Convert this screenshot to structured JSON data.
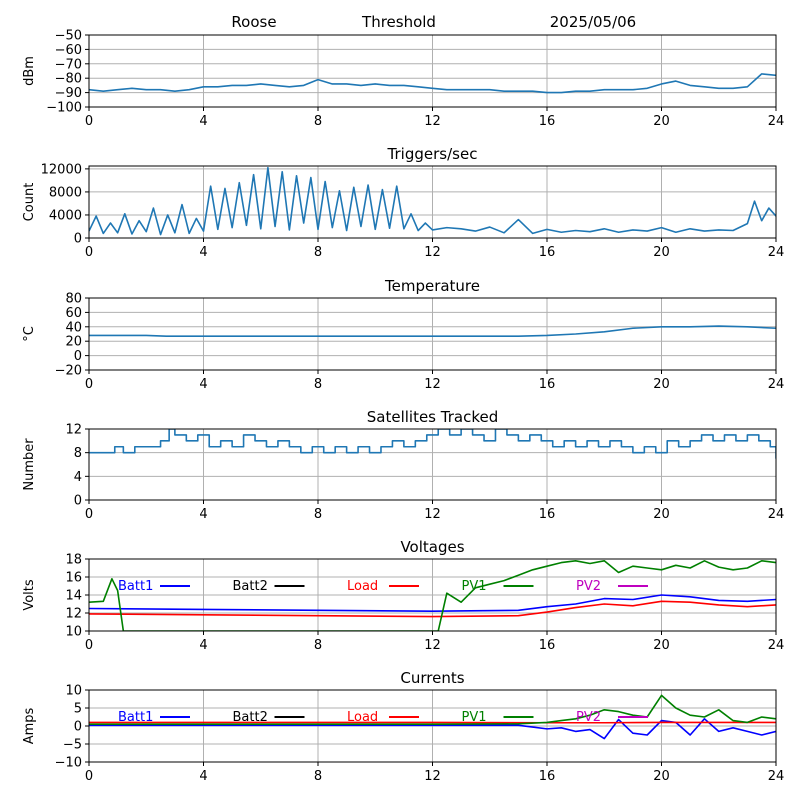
{
  "header": {
    "station": "Roose",
    "mode": "Threshold",
    "date": "2025/05/06"
  },
  "colors": {
    "trace": "#1f77b4",
    "grid": "#b0b0b0",
    "batt1": "#0000ff",
    "batt2": "#000000",
    "load": "#ff0000",
    "pv1": "#008000",
    "pv2": "#bf00bf"
  },
  "chart_data": [
    {
      "id": "signal",
      "type": "line",
      "title": "",
      "ylabel": "dBm",
      "xlim": [
        0,
        24
      ],
      "ylim": [
        -100,
        -50
      ],
      "xticks": [
        "0",
        "4",
        "8",
        "12",
        "16",
        "20",
        "24"
      ],
      "yticks": [
        "−50",
        "−60",
        "−70",
        "−80",
        "−90",
        "−100"
      ],
      "grid": true,
      "series": [
        {
          "color": "#1f77b4",
          "x": [
            0,
            0.5,
            1,
            1.5,
            2,
            2.5,
            3,
            3.5,
            4,
            4.5,
            5,
            5.5,
            6,
            6.5,
            7,
            7.5,
            8,
            8.5,
            9,
            9.5,
            10,
            10.5,
            11,
            11.5,
            12,
            12.5,
            13,
            13.5,
            14,
            14.5,
            15,
            15.5,
            16,
            16.5,
            17,
            17.5,
            18,
            18.5,
            19,
            19.5,
            20,
            20.5,
            21,
            21.5,
            22,
            22.5,
            23,
            23.5,
            24
          ],
          "y": [
            -88,
            -89,
            -88,
            -87,
            -88,
            -88,
            -89,
            -88,
            -86,
            -86,
            -85,
            -85,
            -84,
            -85,
            -86,
            -85,
            -81,
            -84,
            -84,
            -85,
            -84,
            -85,
            -85,
            -86,
            -87,
            -88,
            -88,
            -88,
            -88,
            -89,
            -89,
            -89,
            -90,
            -90,
            -89,
            -89,
            -88,
            -88,
            -88,
            -87,
            -84,
            -82,
            -85,
            -86,
            -87,
            -87,
            -86,
            -77,
            -78
          ]
        }
      ]
    },
    {
      "id": "triggers",
      "type": "line",
      "title": "Triggers/sec",
      "ylabel": "Count",
      "xlim": [
        0,
        24
      ],
      "ylim": [
        0,
        12500
      ],
      "xticks": [
        "0",
        "4",
        "8",
        "12",
        "16",
        "20",
        "24"
      ],
      "yticks": [
        "0",
        "4000",
        "8000",
        "12000"
      ],
      "grid": true,
      "series": [
        {
          "color": "#1f77b4",
          "x": [
            0,
            0.25,
            0.5,
            0.75,
            1,
            1.25,
            1.5,
            1.75,
            2,
            2.25,
            2.5,
            2.75,
            3,
            3.25,
            3.5,
            3.75,
            4,
            4.25,
            4.5,
            4.75,
            5,
            5.25,
            5.5,
            5.75,
            6,
            6.25,
            6.5,
            6.75,
            7,
            7.25,
            7.5,
            7.75,
            8,
            8.25,
            8.5,
            8.75,
            9,
            9.25,
            9.5,
            9.75,
            10,
            10.25,
            10.5,
            10.75,
            11,
            11.25,
            11.5,
            11.75,
            12,
            12.5,
            13,
            13.5,
            14,
            14.5,
            15,
            15.5,
            16,
            16.5,
            17,
            17.5,
            18,
            18.5,
            19,
            19.5,
            20,
            20.5,
            21,
            21.5,
            22,
            22.5,
            23,
            23.25,
            23.5,
            23.75,
            24
          ],
          "y": [
            1200,
            3800,
            800,
            2600,
            900,
            4200,
            700,
            3000,
            1100,
            5200,
            600,
            4000,
            900,
            5800,
            800,
            3400,
            1200,
            9000,
            1500,
            8600,
            1800,
            9600,
            2200,
            11000,
            1600,
            12200,
            2000,
            11500,
            1400,
            10800,
            2600,
            10500,
            1500,
            9800,
            1800,
            8200,
            1300,
            8800,
            2000,
            9200,
            1500,
            8400,
            1700,
            9000,
            1600,
            4200,
            1300,
            2600,
            1400,
            1800,
            1600,
            1200,
            1900,
            900,
            3200,
            800,
            1500,
            1000,
            1300,
            1100,
            1600,
            1000,
            1400,
            1200,
            1800,
            1000,
            1600,
            1200,
            1400,
            1300,
            2500,
            6400,
            3000,
            5200,
            3800
          ]
        }
      ]
    },
    {
      "id": "temperature",
      "type": "line",
      "title": "Temperature",
      "ylabel": "°C",
      "xlim": [
        0,
        24
      ],
      "ylim": [
        -20,
        80
      ],
      "xticks": [
        "0",
        "4",
        "8",
        "12",
        "16",
        "20",
        "24"
      ],
      "yticks": [
        "80",
        "60",
        "40",
        "20",
        "0",
        "−20"
      ],
      "grid": true,
      "series": [
        {
          "color": "#1f77b4",
          "x": [
            0,
            2,
            2.7,
            4,
            8,
            12,
            15,
            16,
            17,
            18,
            19,
            20,
            21,
            22,
            23,
            24
          ],
          "y": [
            28,
            28,
            27,
            27,
            27,
            27,
            27,
            28,
            30,
            33,
            38,
            40,
            40,
            41,
            40,
            38
          ]
        }
      ]
    },
    {
      "id": "satellites",
      "type": "line",
      "title": "Satellites Tracked",
      "ylabel": "Number",
      "xlim": [
        0,
        24
      ],
      "ylim": [
        0,
        12
      ],
      "xticks": [
        "0",
        "4",
        "8",
        "12",
        "16",
        "20",
        "24"
      ],
      "yticks": [
        "12",
        "8",
        "4",
        "0"
      ],
      "grid": true,
      "series": [
        {
          "color": "#1f77b4",
          "step": true,
          "x": [
            0,
            0.5,
            0.9,
            1.2,
            1.6,
            2,
            2.5,
            2.8,
            3,
            3.4,
            3.8,
            4.2,
            4.6,
            5,
            5.4,
            5.8,
            6.2,
            6.6,
            7,
            7.4,
            7.8,
            8.2,
            8.6,
            9,
            9.4,
            9.8,
            10.2,
            10.6,
            11,
            11.4,
            11.8,
            12.2,
            12.6,
            13,
            13.4,
            13.8,
            14.2,
            14.6,
            15,
            15.4,
            15.8,
            16.2,
            16.6,
            17,
            17.4,
            17.8,
            18.2,
            18.6,
            19,
            19.4,
            19.8,
            20.2,
            20.6,
            21,
            21.4,
            21.8,
            22.2,
            22.6,
            23,
            23.4,
            23.8,
            24
          ],
          "y": [
            8,
            8,
            9,
            8,
            9,
            9,
            10,
            12,
            11,
            10,
            11,
            9,
            10,
            9,
            11,
            10,
            9,
            10,
            9,
            8,
            9,
            8,
            9,
            8,
            9,
            8,
            9,
            10,
            9,
            10,
            11,
            12,
            11,
            12,
            11,
            10,
            12,
            11,
            10,
            11,
            10,
            9,
            10,
            9,
            10,
            9,
            10,
            9,
            8,
            9,
            8,
            10,
            9,
            10,
            11,
            10,
            11,
            10,
            11,
            10,
            9,
            7
          ]
        }
      ]
    },
    {
      "id": "voltages",
      "type": "line",
      "title": "Voltages",
      "ylabel": "Volts",
      "xlim": [
        0,
        24
      ],
      "ylim": [
        10,
        18
      ],
      "xticks": [
        "0",
        "4",
        "8",
        "12",
        "16",
        "20",
        "24"
      ],
      "yticks": [
        "18",
        "16",
        "14",
        "12",
        "10"
      ],
      "grid": true,
      "legend": [
        "Batt1",
        "Batt2",
        "Load",
        "PV1",
        "PV2"
      ],
      "series": [
        {
          "name": "Batt1",
          "color": "#0000ff",
          "x": [
            0,
            4,
            8,
            12,
            15,
            16,
            17,
            18,
            19,
            20,
            21,
            22,
            23,
            24
          ],
          "y": [
            12.5,
            12.4,
            12.3,
            12.2,
            12.3,
            12.7,
            13.0,
            13.6,
            13.5,
            14.0,
            13.8,
            13.4,
            13.3,
            13.5
          ]
        },
        {
          "name": "Load",
          "color": "#ff0000",
          "x": [
            0,
            4,
            8,
            12,
            15,
            16,
            17,
            18,
            19,
            20,
            21,
            22,
            23,
            24
          ],
          "y": [
            11.9,
            11.8,
            11.7,
            11.6,
            11.7,
            12.1,
            12.6,
            13.0,
            12.8,
            13.3,
            13.2,
            12.9,
            12.7,
            12.9
          ]
        },
        {
          "name": "PV1",
          "color": "#008000",
          "x": [
            0,
            0.5,
            0.8,
            1,
            1.2,
            12.2,
            12.5,
            13,
            13.5,
            14,
            14.5,
            15,
            15.5,
            16,
            16.5,
            17,
            17.5,
            18,
            18.5,
            19,
            19.5,
            20,
            20.5,
            21,
            21.5,
            22,
            22.5,
            23,
            23.5,
            24
          ],
          "y": [
            13.2,
            13.3,
            15.8,
            14.5,
            10,
            10,
            14.2,
            13.2,
            14.8,
            15.2,
            15.6,
            16.2,
            16.8,
            17.2,
            17.6,
            17.8,
            17.5,
            17.8,
            16.5,
            17.2,
            17.0,
            16.8,
            17.3,
            17.0,
            17.8,
            17.1,
            16.8,
            17.0,
            17.8,
            17.6
          ]
        }
      ]
    },
    {
      "id": "currents",
      "type": "line",
      "title": "Currents",
      "ylabel": "Amps",
      "xlim": [
        0,
        24
      ],
      "ylim": [
        -10,
        10
      ],
      "xticks": [
        "0",
        "4",
        "8",
        "12",
        "16",
        "20",
        "24"
      ],
      "yticks": [
        "10",
        "5",
        "0",
        "−5",
        "−10"
      ],
      "grid": true,
      "legend": [
        "Batt1",
        "Batt2",
        "Load",
        "PV1",
        "PV2"
      ],
      "series": [
        {
          "name": "Batt1",
          "color": "#0000ff",
          "x": [
            0,
            4,
            8,
            12,
            15,
            15.5,
            16,
            16.5,
            17,
            17.5,
            18,
            18.5,
            19,
            19.5,
            20,
            20.5,
            21,
            21.5,
            22,
            22.5,
            23,
            23.5,
            24
          ],
          "y": [
            0.2,
            0.2,
            0.2,
            0.2,
            0.2,
            -0.3,
            -0.8,
            -0.5,
            -1.5,
            -1.0,
            -3.5,
            1.8,
            -2.0,
            -2.5,
            1.5,
            1.0,
            -2.5,
            2.0,
            -1.5,
            -0.5,
            -1.5,
            -2.5,
            -1.5
          ]
        },
        {
          "name": "Load",
          "color": "#ff0000",
          "x": [
            0,
            4,
            8,
            12,
            16,
            18,
            20,
            22,
            24
          ],
          "y": [
            1.0,
            1.0,
            1.0,
            1.0,
            0.9,
            0.9,
            1.0,
            1.0,
            1.0
          ]
        },
        {
          "name": "PV1",
          "color": "#008000",
          "x": [
            0,
            4,
            8,
            12,
            15,
            16,
            16.5,
            17,
            17.5,
            18,
            18.5,
            19,
            19.5,
            20,
            20.5,
            21,
            21.5,
            22,
            22.5,
            23,
            23.5,
            24
          ],
          "y": [
            0.5,
            0.5,
            0.5,
            0.5,
            0.6,
            1.0,
            1.5,
            2.0,
            3.0,
            4.5,
            4.0,
            3.0,
            2.5,
            8.5,
            5.0,
            3.0,
            2.5,
            4.5,
            1.5,
            1.0,
            2.5,
            2.0
          ]
        }
      ]
    }
  ]
}
